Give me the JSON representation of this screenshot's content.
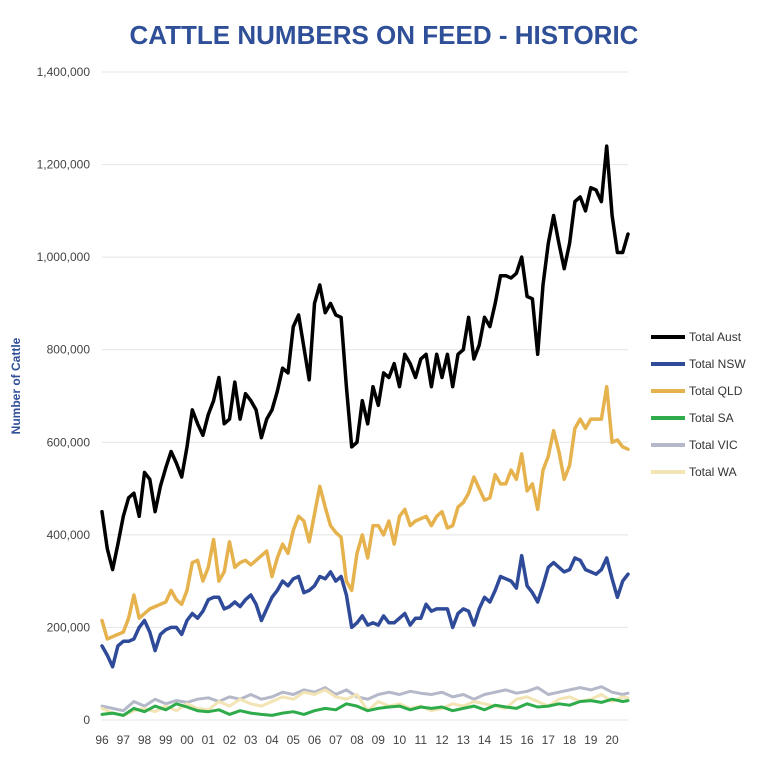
{
  "chart_data": {
    "type": "line",
    "title": "CATTLE NUMBERS ON FEED - HISTORIC",
    "ylabel": "Number of Cattle",
    "xlabel": "",
    "ylim": [
      0,
      1400000
    ],
    "yticks": [
      0,
      200000,
      400000,
      600000,
      800000,
      1000000,
      1200000,
      1400000
    ],
    "ytick_labels": [
      "0",
      "200,000",
      "400,000",
      "600,000",
      "800,000",
      "1,000,000",
      "1,200,000",
      "1,400,000"
    ],
    "x_tick_labels": [
      "96",
      "97",
      "98",
      "99",
      "00",
      "01",
      "02",
      "03",
      "04",
      "05",
      "06",
      "07",
      "08",
      "09",
      "10",
      "11",
      "12",
      "13",
      "14",
      "15",
      "16",
      "17",
      "18",
      "19",
      "20"
    ],
    "x_tick_positions": [
      1996,
      1997,
      1998,
      1999,
      2000,
      2001,
      2002,
      2003,
      2004,
      2005,
      2006,
      2007,
      2008,
      2009,
      2010,
      2011,
      2012,
      2013,
      2014,
      2015,
      2016,
      2017,
      2018,
      2019,
      2020
    ],
    "xlim": [
      1996,
      2020.75
    ],
    "grid": true,
    "legend_position": "right",
    "title_color": "#2f4f98",
    "series": [
      {
        "name": "Total Aust",
        "color": "#000000",
        "x": [
          1996,
          1996.25,
          1996.5,
          1996.75,
          1997,
          1997.25,
          1997.5,
          1997.75,
          1998,
          1998.25,
          1998.5,
          1998.75,
          1999,
          1999.25,
          1999.5,
          1999.75,
          2000,
          2000.25,
          2000.5,
          2000.75,
          2001,
          2001.25,
          2001.5,
          2001.75,
          2002,
          2002.25,
          2002.5,
          2002.75,
          2003,
          2003.25,
          2003.5,
          2003.75,
          2004,
          2004.25,
          2004.5,
          2004.75,
          2005,
          2005.25,
          2005.5,
          2005.75,
          2006,
          2006.25,
          2006.5,
          2006.75,
          2007,
          2007.25,
          2007.5,
          2007.75,
          2008,
          2008.25,
          2008.5,
          2008.75,
          2009,
          2009.25,
          2009.5,
          2009.75,
          2010,
          2010.25,
          2010.5,
          2010.75,
          2011,
          2011.25,
          2011.5,
          2011.75,
          2012,
          2012.25,
          2012.5,
          2012.75,
          2013,
          2013.25,
          2013.5,
          2013.75,
          2014,
          2014.25,
          2014.5,
          2014.75,
          2015,
          2015.25,
          2015.5,
          2015.75,
          2016,
          2016.25,
          2016.5,
          2016.75,
          2017,
          2017.25,
          2017.5,
          2017.75,
          2018,
          2018.25,
          2018.5,
          2018.75,
          2019,
          2019.25,
          2019.5,
          2019.75,
          2020,
          2020.25,
          2020.5,
          2020.75
        ],
        "values": [
          450000,
          370000,
          325000,
          380000,
          440000,
          480000,
          490000,
          440000,
          535000,
          520000,
          450000,
          505000,
          545000,
          580000,
          555000,
          525000,
          590000,
          670000,
          640000,
          615000,
          660000,
          690000,
          740000,
          640000,
          650000,
          730000,
          650000,
          705000,
          690000,
          670000,
          610000,
          650000,
          670000,
          710000,
          760000,
          750000,
          850000,
          875000,
          805000,
          735000,
          900000,
          940000,
          880000,
          900000,
          875000,
          870000,
          720000,
          590000,
          600000,
          690000,
          640000,
          720000,
          680000,
          750000,
          740000,
          770000,
          720000,
          790000,
          770000,
          740000,
          780000,
          790000,
          720000,
          790000,
          740000,
          790000,
          720000,
          790000,
          800000,
          870000,
          780000,
          810000,
          870000,
          850000,
          900000,
          960000,
          960000,
          955000,
          965000,
          1000000,
          915000,
          910000,
          790000,
          940000,
          1030000,
          1090000,
          1030000,
          975000,
          1030000,
          1120000,
          1130000,
          1100000,
          1150000,
          1145000,
          1120000,
          1240000,
          1090000,
          1010000,
          1010000,
          1050000
        ]
      },
      {
        "name": "Total NSW",
        "color": "#2e4a99",
        "x": [
          1996,
          1996.25,
          1996.5,
          1996.75,
          1997,
          1997.25,
          1997.5,
          1997.75,
          1998,
          1998.25,
          1998.5,
          1998.75,
          1999,
          1999.25,
          1999.5,
          1999.75,
          2000,
          2000.25,
          2000.5,
          2000.75,
          2001,
          2001.25,
          2001.5,
          2001.75,
          2002,
          2002.25,
          2002.5,
          2002.75,
          2003,
          2003.25,
          2003.5,
          2003.75,
          2004,
          2004.25,
          2004.5,
          2004.75,
          2005,
          2005.25,
          2005.5,
          2005.75,
          2006,
          2006.25,
          2006.5,
          2006.75,
          2007,
          2007.25,
          2007.5,
          2007.75,
          2008,
          2008.25,
          2008.5,
          2008.75,
          2009,
          2009.25,
          2009.5,
          2009.75,
          2010,
          2010.25,
          2010.5,
          2010.75,
          2011,
          2011.25,
          2011.5,
          2011.75,
          2012,
          2012.25,
          2012.5,
          2012.75,
          2013,
          2013.25,
          2013.5,
          2013.75,
          2014,
          2014.25,
          2014.5,
          2014.75,
          2015,
          2015.25,
          2015.5,
          2015.75,
          2016,
          2016.25,
          2016.5,
          2016.75,
          2017,
          2017.25,
          2017.5,
          2017.75,
          2018,
          2018.25,
          2018.5,
          2018.75,
          2019,
          2019.25,
          2019.5,
          2019.75,
          2020,
          2020.25,
          2020.5,
          2020.75
        ],
        "values": [
          160000,
          140000,
          115000,
          160000,
          170000,
          170000,
          175000,
          200000,
          215000,
          190000,
          150000,
          185000,
          195000,
          200000,
          200000,
          185000,
          215000,
          230000,
          220000,
          235000,
          260000,
          265000,
          265000,
          240000,
          245000,
          255000,
          245000,
          260000,
          270000,
          250000,
          215000,
          240000,
          265000,
          280000,
          300000,
          290000,
          305000,
          310000,
          275000,
          280000,
          290000,
          310000,
          305000,
          320000,
          300000,
          310000,
          270000,
          200000,
          210000,
          225000,
          205000,
          210000,
          205000,
          225000,
          210000,
          210000,
          220000,
          230000,
          205000,
          220000,
          220000,
          250000,
          235000,
          240000,
          240000,
          240000,
          200000,
          230000,
          240000,
          235000,
          205000,
          240000,
          265000,
          255000,
          280000,
          310000,
          305000,
          300000,
          285000,
          355000,
          290000,
          275000,
          255000,
          290000,
          330000,
          340000,
          330000,
          320000,
          325000,
          350000,
          345000,
          325000,
          320000,
          315000,
          325000,
          350000,
          305000,
          265000,
          300000,
          315000
        ]
      },
      {
        "name": "Total QLD",
        "color": "#e6b24d",
        "x": [
          1996,
          1996.25,
          1996.5,
          1996.75,
          1997,
          1997.25,
          1997.5,
          1997.75,
          1998,
          1998.25,
          1998.5,
          1998.75,
          1999,
          1999.25,
          1999.5,
          1999.75,
          2000,
          2000.25,
          2000.5,
          2000.75,
          2001,
          2001.25,
          2001.5,
          2001.75,
          2002,
          2002.25,
          2002.5,
          2002.75,
          2003,
          2003.25,
          2003.5,
          2003.75,
          2004,
          2004.25,
          2004.5,
          2004.75,
          2005,
          2005.25,
          2005.5,
          2005.75,
          2006,
          2006.25,
          2006.5,
          2006.75,
          2007,
          2007.25,
          2007.5,
          2007.75,
          2008,
          2008.25,
          2008.5,
          2008.75,
          2009,
          2009.25,
          2009.5,
          2009.75,
          2010,
          2010.25,
          2010.5,
          2010.75,
          2011,
          2011.25,
          2011.5,
          2011.75,
          2012,
          2012.25,
          2012.5,
          2012.75,
          2013,
          2013.25,
          2013.5,
          2013.75,
          2014,
          2014.25,
          2014.5,
          2014.75,
          2015,
          2015.25,
          2015.5,
          2015.75,
          2016,
          2016.25,
          2016.5,
          2016.75,
          2017,
          2017.25,
          2017.5,
          2017.75,
          2018,
          2018.25,
          2018.5,
          2018.75,
          2019,
          2019.25,
          2019.5,
          2019.75,
          2020,
          2020.25,
          2020.5,
          2020.75
        ],
        "values": [
          215000,
          175000,
          180000,
          185000,
          190000,
          220000,
          270000,
          220000,
          230000,
          240000,
          245000,
          250000,
          255000,
          280000,
          260000,
          250000,
          280000,
          340000,
          345000,
          300000,
          330000,
          390000,
          300000,
          320000,
          385000,
          330000,
          340000,
          345000,
          335000,
          345000,
          355000,
          365000,
          310000,
          350000,
          380000,
          360000,
          410000,
          440000,
          430000,
          385000,
          445000,
          505000,
          460000,
          420000,
          405000,
          395000,
          300000,
          280000,
          360000,
          400000,
          350000,
          420000,
          420000,
          400000,
          430000,
          380000,
          440000,
          455000,
          420000,
          430000,
          435000,
          440000,
          420000,
          440000,
          450000,
          415000,
          420000,
          460000,
          470000,
          490000,
          525000,
          500000,
          475000,
          480000,
          530000,
          510000,
          510000,
          540000,
          520000,
          575000,
          495000,
          510000,
          455000,
          540000,
          570000,
          625000,
          580000,
          520000,
          550000,
          630000,
          650000,
          630000,
          650000,
          650000,
          650000,
          720000,
          600000,
          605000,
          590000,
          585000
        ]
      },
      {
        "name": "Total SA",
        "color": "#2eab4a",
        "x": [
          1996,
          1996.5,
          1997,
          1997.5,
          1998,
          1998.5,
          1999,
          1999.5,
          2000,
          2000.5,
          2001,
          2001.5,
          2002,
          2002.5,
          2003,
          2003.5,
          2004,
          2004.5,
          2005,
          2005.5,
          2006,
          2006.5,
          2007,
          2007.5,
          2008,
          2008.5,
          2009,
          2009.5,
          2010,
          2010.5,
          2011,
          2011.5,
          2012,
          2012.5,
          2013,
          2013.5,
          2014,
          2014.5,
          2015,
          2015.5,
          2016,
          2016.5,
          2017,
          2017.5,
          2018,
          2018.5,
          2019,
          2019.5,
          2020,
          2020.5,
          2020.75
        ],
        "values": [
          12000,
          15000,
          10000,
          25000,
          18000,
          30000,
          22000,
          35000,
          28000,
          20000,
          18000,
          22000,
          12000,
          20000,
          15000,
          12000,
          10000,
          15000,
          18000,
          12000,
          20000,
          25000,
          22000,
          35000,
          30000,
          20000,
          25000,
          28000,
          30000,
          22000,
          28000,
          25000,
          28000,
          20000,
          25000,
          30000,
          22000,
          32000,
          28000,
          25000,
          35000,
          28000,
          30000,
          35000,
          32000,
          40000,
          42000,
          38000,
          45000,
          40000,
          42000
        ]
      },
      {
        "name": "Total VIC",
        "color": "#b4b8c8",
        "x": [
          1996,
          1996.5,
          1997,
          1997.5,
          1998,
          1998.5,
          1999,
          1999.5,
          2000,
          2000.5,
          2001,
          2001.5,
          2002,
          2002.5,
          2003,
          2003.5,
          2004,
          2004.5,
          2005,
          2005.5,
          2006,
          2006.5,
          2007,
          2007.5,
          2008,
          2008.5,
          2009,
          2009.5,
          2010,
          2010.5,
          2011,
          2011.5,
          2012,
          2012.5,
          2013,
          2013.5,
          2014,
          2014.5,
          2015,
          2015.5,
          2016,
          2016.5,
          2017,
          2017.5,
          2018,
          2018.5,
          2019,
          2019.5,
          2020,
          2020.5,
          2020.75
        ],
        "values": [
          30000,
          25000,
          20000,
          40000,
          30000,
          45000,
          35000,
          42000,
          38000,
          45000,
          48000,
          40000,
          50000,
          45000,
          55000,
          45000,
          50000,
          60000,
          55000,
          65000,
          60000,
          70000,
          55000,
          65000,
          50000,
          45000,
          55000,
          60000,
          55000,
          62000,
          58000,
          55000,
          60000,
          50000,
          55000,
          45000,
          55000,
          60000,
          65000,
          58000,
          62000,
          70000,
          55000,
          60000,
          65000,
          70000,
          65000,
          72000,
          60000,
          55000,
          58000
        ]
      },
      {
        "name": "Total WA",
        "color": "#f2e4b4",
        "x": [
          1996,
          1996.5,
          1997,
          1997.5,
          1998,
          1998.5,
          1999,
          1999.5,
          2000,
          2000.5,
          2001,
          2001.5,
          2002,
          2002.5,
          2003,
          2003.5,
          2004,
          2004.5,
          2005,
          2005.5,
          2006,
          2006.5,
          2007,
          2007.5,
          2008,
          2008.5,
          2009,
          2009.5,
          2010,
          2010.5,
          2011,
          2011.5,
          2012,
          2012.5,
          2013,
          2013.5,
          2014,
          2014.5,
          2015,
          2015.5,
          2016,
          2016.5,
          2017,
          2017.5,
          2018,
          2018.5,
          2019,
          2019.5,
          2020,
          2020.5,
          2020.75
        ],
        "values": [
          25000,
          15000,
          10000,
          20000,
          25000,
          18000,
          30000,
          20000,
          35000,
          25000,
          22000,
          40000,
          30000,
          45000,
          35000,
          30000,
          40000,
          50000,
          45000,
          60000,
          55000,
          65000,
          50000,
          45000,
          55000,
          20000,
          40000,
          30000,
          35000,
          25000,
          30000,
          20000,
          25000,
          35000,
          30000,
          40000,
          35000,
          30000,
          25000,
          45000,
          50000,
          40000,
          30000,
          45000,
          50000,
          40000,
          45000,
          55000,
          40000,
          50000,
          48000
        ]
      }
    ]
  }
}
